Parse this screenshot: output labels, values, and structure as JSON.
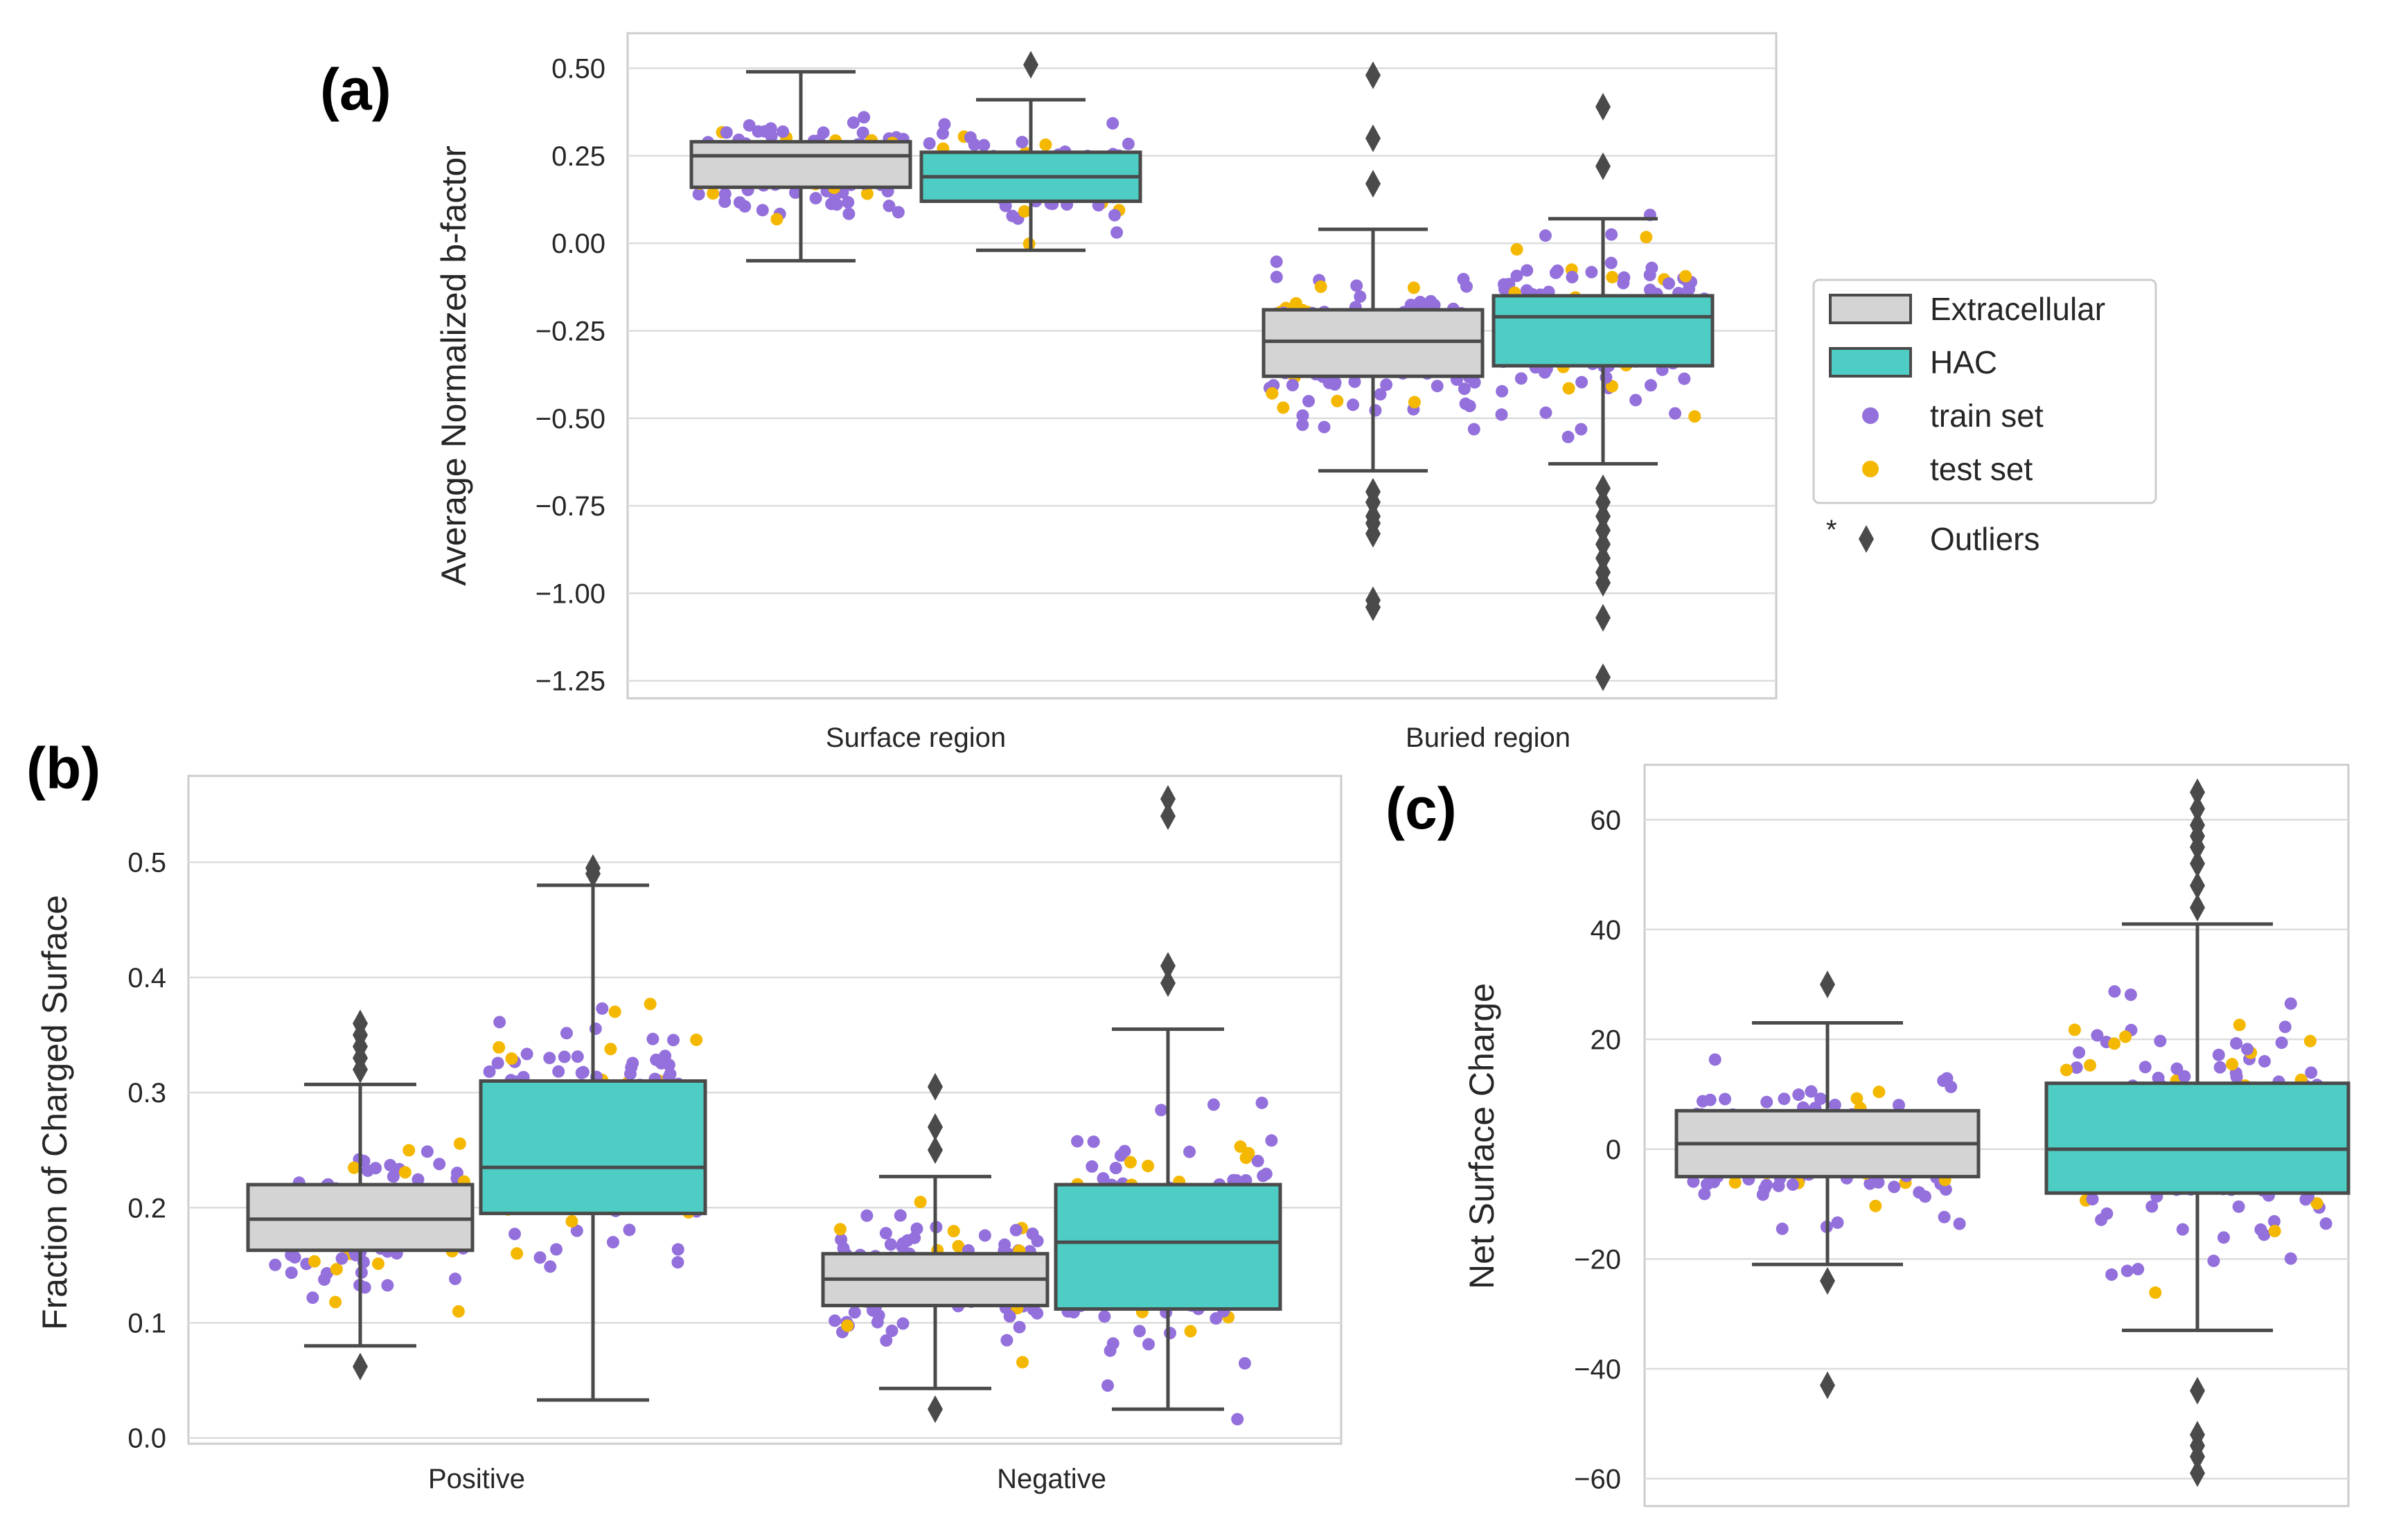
{
  "colors": {
    "extracellular_box": "#d4d4d4",
    "hac_box": "#4ecdc4",
    "train_point": "#9370db",
    "test_point": "#f5b800",
    "outlier": "#4a4a4a",
    "box_edge": "#4a4a4a"
  },
  "legend": {
    "items": [
      {
        "label": "Extracellular",
        "kind": "box",
        "color": "#d4d4d4"
      },
      {
        "label": "HAC",
        "kind": "box",
        "color": "#4ecdc4"
      },
      {
        "label": "train set",
        "kind": "point",
        "color": "#9370db"
      },
      {
        "label": "test set",
        "kind": "point",
        "color": "#f5b800"
      }
    ],
    "outlier_star": "*",
    "outlier_label": "Outliers"
  },
  "chart_data": [
    {
      "id": "a",
      "panel_label": "(a)",
      "type": "box",
      "ylabel": "Average Normalized b-factor",
      "ylim": [
        -1.3,
        0.6
      ],
      "yticks": [
        -1.25,
        -1.0,
        -0.75,
        -0.5,
        -0.25,
        0.0,
        0.25,
        0.5
      ],
      "ytick_labels": [
        "−1.25",
        "−1.00",
        "−0.75",
        "−0.50",
        "−0.25",
        "0.00",
        "0.25",
        "0.50"
      ],
      "categories": [
        "Surface region",
        "Buried region"
      ],
      "series": [
        {
          "name": "Extracellular",
          "boxes": [
            {
              "q1": 0.16,
              "median": 0.25,
              "q3": 0.29,
              "whisker_low": -0.05,
              "whisker_high": 0.49,
              "outliers": [],
              "n": 130,
              "center": 0.22,
              "spread": 0.12
            },
            {
              "q1": -0.38,
              "median": -0.28,
              "q3": -0.19,
              "whisker_low": -0.65,
              "whisker_high": 0.04,
              "outliers": [
                0.48,
                0.3,
                0.17,
                -0.71,
                -0.74,
                -0.78,
                -0.8,
                -0.83,
                -1.02,
                -1.04
              ],
              "n": 150,
              "center": -0.3,
              "spread": 0.2
            }
          ]
        },
        {
          "name": "HAC",
          "boxes": [
            {
              "q1": 0.12,
              "median": 0.19,
              "q3": 0.26,
              "whisker_low": -0.02,
              "whisker_high": 0.41,
              "outliers": [
                0.51
              ],
              "n": 130,
              "center": 0.19,
              "spread": 0.1
            },
            {
              "q1": -0.35,
              "median": -0.21,
              "q3": -0.15,
              "whisker_low": -0.63,
              "whisker_high": 0.07,
              "outliers": [
                0.39,
                0.22,
                -0.7,
                -0.74,
                -0.78,
                -0.82,
                -0.86,
                -0.9,
                -0.94,
                -0.97,
                -1.07,
                -1.24
              ],
              "n": 170,
              "center": -0.24,
              "spread": 0.2
            }
          ]
        }
      ]
    },
    {
      "id": "b",
      "panel_label": "(b)",
      "type": "box",
      "ylabel": "Fraction of Charged Surface",
      "ylim": [
        -0.005,
        0.575
      ],
      "yticks": [
        0.0,
        0.1,
        0.2,
        0.3,
        0.4,
        0.5
      ],
      "ytick_labels": [
        "0.0",
        "0.1",
        "0.2",
        "0.3",
        "0.4",
        "0.5"
      ],
      "categories": [
        "Positive",
        "Negative"
      ],
      "series": [
        {
          "name": "Extracellular",
          "boxes": [
            {
              "q1": 0.163,
              "median": 0.19,
              "q3": 0.22,
              "whisker_low": 0.08,
              "whisker_high": 0.307,
              "outliers": [
                0.062,
                0.32,
                0.33,
                0.34,
                0.35,
                0.36
              ],
              "n": 150,
              "center": 0.19,
              "spread": 0.05
            },
            {
              "q1": 0.115,
              "median": 0.138,
              "q3": 0.16,
              "whisker_low": 0.043,
              "whisker_high": 0.227,
              "outliers": [
                0.025,
                0.25,
                0.27,
                0.305
              ],
              "n": 150,
              "center": 0.14,
              "spread": 0.045
            }
          ]
        },
        {
          "name": "HAC",
          "boxes": [
            {
              "q1": 0.195,
              "median": 0.235,
              "q3": 0.31,
              "whisker_low": 0.033,
              "whisker_high": 0.48,
              "outliers": [
                0.49,
                0.495
              ],
              "n": 170,
              "center": 0.26,
              "spread": 0.09
            },
            {
              "q1": 0.112,
              "median": 0.17,
              "q3": 0.22,
              "whisker_low": 0.025,
              "whisker_high": 0.355,
              "outliers": [
                0.395,
                0.41,
                0.54,
                0.555
              ],
              "n": 170,
              "center": 0.17,
              "spread": 0.08
            }
          ]
        }
      ]
    },
    {
      "id": "c",
      "panel_label": "(c)",
      "type": "box",
      "ylabel": "Net Surface Charge",
      "ylim": [
        -65,
        70
      ],
      "yticks": [
        -60,
        -40,
        -20,
        0,
        20,
        40,
        60
      ],
      "ytick_labels": [
        "−60",
        "−40",
        "−20",
        "0",
        "20",
        "40",
        "60"
      ],
      "categories": [
        "",
        ""
      ],
      "series": [
        {
          "name": "Extracellular",
          "boxes": [
            {
              "q1": -5,
              "median": 1,
              "q3": 7,
              "whisker_low": -21,
              "whisker_high": 23,
              "outliers": [
                30,
                -24,
                -43
              ],
              "n": 170,
              "center": 0,
              "spread": 10
            }
          ]
        },
        {
          "name": "HAC",
          "boxes": [
            {
              "q1": -8,
              "median": 0,
              "q3": 12,
              "whisker_low": -33,
              "whisker_high": 41,
              "outliers": [
                44,
                48,
                52,
                55,
                57,
                59,
                62,
                65,
                -44,
                -52,
                -54,
                -56,
                -59
              ],
              "n": 190,
              "center": 2,
              "spread": 17
            }
          ]
        }
      ]
    }
  ]
}
